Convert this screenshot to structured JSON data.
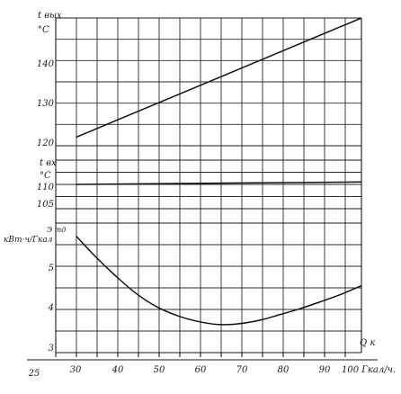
{
  "chart_data": [
    {
      "type": "line",
      "ylabel": "t вых °C",
      "yticks": [
        120,
        130,
        140
      ],
      "ylim": [
        120,
        150
      ],
      "xlim": [
        25,
        100
      ],
      "grid": true,
      "series": [
        {
          "x": [
            30,
            100
          ],
          "y": [
            122,
            150
          ]
        }
      ]
    },
    {
      "type": "line",
      "ylabel": "t вх °C",
      "yticks": [
        105,
        110
      ],
      "ylim": [
        105,
        115
      ],
      "xlim": [
        25,
        100
      ],
      "grid": true,
      "series": [
        {
          "x": [
            30,
            100
          ],
          "y": [
            110,
            110.5
          ]
        }
      ]
    },
    {
      "type": "line",
      "ylabel": "Э тд кВт·ч/Гкал",
      "yticks": [
        3,
        4,
        5
      ],
      "ylim": [
        3,
        6
      ],
      "xlim": [
        25,
        100
      ],
      "grid": true,
      "series": [
        {
          "x": [
            30,
            35,
            40,
            45,
            50,
            55,
            60,
            65,
            70,
            75,
            80,
            85,
            90,
            95,
            100
          ],
          "y": [
            5.7,
            5.2,
            4.75,
            4.35,
            4.05,
            3.85,
            3.72,
            3.65,
            3.67,
            3.75,
            3.88,
            4.02,
            4.18,
            4.35,
            4.55
          ]
        }
      ]
    }
  ],
  "x_axis": {
    "label": "Q к",
    "ticks": [
      "25",
      "30",
      "40",
      "50",
      "60",
      "70",
      "80",
      "90",
      "100 Гкал/ч."
    ]
  },
  "panels_text": {
    "top": {
      "name": "t вых",
      "unit": "°C",
      "ticks": [
        "140",
        "130",
        "120"
      ]
    },
    "mid": {
      "name": "t вх",
      "unit": "°C",
      "ticks": [
        "110",
        "105"
      ]
    },
    "bot": {
      "name": "Э тд",
      "unit": "кВт·ч/Гкал",
      "ticks": [
        "5",
        "4",
        "3"
      ]
    }
  }
}
